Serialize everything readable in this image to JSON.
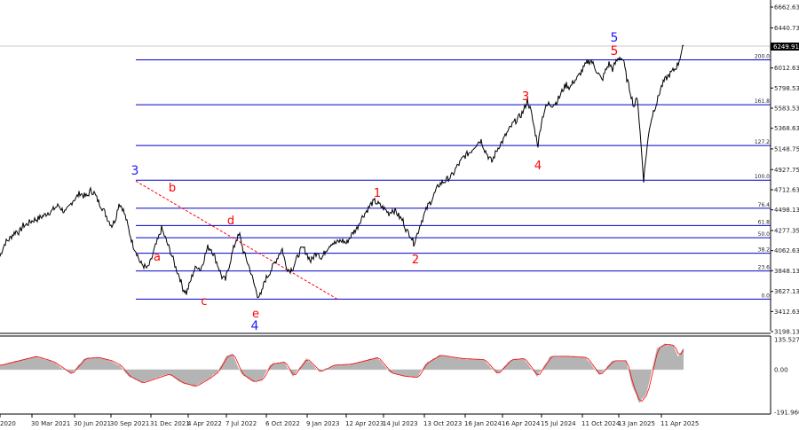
{
  "colors": {
    "price_line": "#000000",
    "fib_line": "#0000cc",
    "trend_line": "#ff0000",
    "wave_red": "#ff0000",
    "wave_blue": "#1a1aff",
    "osc_fill": "#b4b4b4",
    "osc_signal": "#ff0000",
    "price_tag_bg": "#000000"
  },
  "chart_data": [
    {
      "type": "line",
      "panel": "price",
      "y_ticks": [
        "6662.63",
        "6440.73",
        "6249.91",
        "6012.63",
        "5798.53",
        "5583.53",
        "5368.63",
        "5148.75",
        "4927.75",
        "4712.63",
        "4498.13",
        "4277.35",
        "4062.63",
        "3848.13",
        "3627.13",
        "3412.63",
        "3198.13"
      ],
      "y_tick_values": [
        6662.63,
        6440.73,
        6249.91,
        6012.63,
        5798.53,
        5583.53,
        5368.63,
        5148.75,
        4927.75,
        4712.63,
        4498.13,
        4277.35,
        4062.63,
        3848.13,
        3627.13,
        3412.63,
        3198.13
      ],
      "ylim": [
        3198.13,
        6662.63
      ],
      "current_price_label": "6249.91",
      "x_labels": [
        "2020",
        "30 Mar 2021",
        "30 Jun 2021",
        "30 Sep 2021",
        "31 Dec 2021",
        "4 Apr 2022",
        "7 Jul 2022",
        "6 Oct 2022",
        "9 Jan 2023",
        "12 Apr 2023",
        "14 Jul 2023",
        "13 Oct 2023",
        "16 Jan 2024",
        "16 Apr 2024",
        "15 Jul 2024",
        "11 Oct 2024",
        "13 Jan 2025",
        "11 Apr 2025"
      ],
      "fib_levels": [
        {
          "label": "200.0",
          "value": 6100
        },
        {
          "label": "161.8",
          "value": 5620
        },
        {
          "label": "127.2",
          "value": 5185
        },
        {
          "label": "100.0",
          "value": 4815
        },
        {
          "label": "76.4",
          "value": 4515
        },
        {
          "label": "61.8",
          "value": 4330
        },
        {
          "label": "50.0",
          "value": 4200
        },
        {
          "label": "38.2",
          "value": 4035
        },
        {
          "label": "23.6",
          "value": 3845
        },
        {
          "label": "0.0",
          "value": 3545
        }
      ],
      "wave_labels": [
        {
          "text": "3",
          "color": "blue"
        },
        {
          "text": "a",
          "color": "red"
        },
        {
          "text": "b",
          "color": "red"
        },
        {
          "text": "c",
          "color": "red"
        },
        {
          "text": "d",
          "color": "red"
        },
        {
          "text": "e",
          "color": "red"
        },
        {
          "text": "4",
          "color": "blue"
        },
        {
          "text": "1",
          "color": "red"
        },
        {
          "text": "2",
          "color": "red"
        },
        {
          "text": "3",
          "color": "red"
        },
        {
          "text": "4",
          "color": "red"
        },
        {
          "text": "5",
          "color": "red"
        },
        {
          "text": "5",
          "color": "blue"
        }
      ],
      "series_points": [
        {
          "t": 0,
          "v": 4000
        },
        {
          "t": 3,
          "v": 4085
        },
        {
          "t": 6,
          "v": 4150
        },
        {
          "t": 10,
          "v": 4180
        },
        {
          "t": 14,
          "v": 4230
        },
        {
          "t": 18,
          "v": 4270
        },
        {
          "t": 22,
          "v": 4260
        },
        {
          "t": 26,
          "v": 4330
        },
        {
          "t": 30,
          "v": 4340
        },
        {
          "t": 34,
          "v": 4370
        },
        {
          "t": 38,
          "v": 4390
        },
        {
          "t": 42,
          "v": 4400
        },
        {
          "t": 46,
          "v": 4420
        },
        {
          "t": 50,
          "v": 4440
        },
        {
          "t": 54,
          "v": 4470
        },
        {
          "t": 58,
          "v": 4480
        },
        {
          "t": 62,
          "v": 4520
        },
        {
          "t": 66,
          "v": 4545
        },
        {
          "t": 70,
          "v": 4500
        },
        {
          "t": 74,
          "v": 4470
        },
        {
          "t": 78,
          "v": 4530
        },
        {
          "t": 82,
          "v": 4600
        },
        {
          "t": 86,
          "v": 4630
        },
        {
          "t": 90,
          "v": 4680
        },
        {
          "t": 94,
          "v": 4650
        },
        {
          "t": 98,
          "v": 4640
        },
        {
          "t": 102,
          "v": 4705
        },
        {
          "t": 106,
          "v": 4680
        },
        {
          "t": 110,
          "v": 4600
        },
        {
          "t": 114,
          "v": 4540
        },
        {
          "t": 118,
          "v": 4470
        },
        {
          "t": 122,
          "v": 4390
        },
        {
          "t": 126,
          "v": 4330
        },
        {
          "t": 130,
          "v": 4400
        },
        {
          "t": 134,
          "v": 4570
        },
        {
          "t": 138,
          "v": 4520
        },
        {
          "t": 142,
          "v": 4400
        },
        {
          "t": 146,
          "v": 4250
        },
        {
          "t": 150,
          "v": 4120
        },
        {
          "t": 154,
          "v": 4040
        },
        {
          "t": 158,
          "v": 3930
        },
        {
          "t": 162,
          "v": 3900
        },
        {
          "t": 166,
          "v": 3870
        },
        {
          "t": 170,
          "v": 3950
        },
        {
          "t": 174,
          "v": 4080
        },
        {
          "t": 178,
          "v": 4180
        },
        {
          "t": 182,
          "v": 4300
        },
        {
          "t": 186,
          "v": 4200
        },
        {
          "t": 190,
          "v": 4100
        },
        {
          "t": 194,
          "v": 4000
        },
        {
          "t": 198,
          "v": 3880
        },
        {
          "t": 202,
          "v": 3790
        },
        {
          "t": 206,
          "v": 3660
        },
        {
          "t": 210,
          "v": 3610
        },
        {
          "t": 214,
          "v": 3720
        },
        {
          "t": 218,
          "v": 3840
        },
        {
          "t": 222,
          "v": 3900
        },
        {
          "t": 226,
          "v": 3860
        },
        {
          "t": 230,
          "v": 3980
        },
        {
          "t": 234,
          "v": 4100
        },
        {
          "t": 238,
          "v": 4080
        },
        {
          "t": 242,
          "v": 3990
        },
        {
          "t": 246,
          "v": 3890
        },
        {
          "t": 250,
          "v": 3780
        },
        {
          "t": 254,
          "v": 3750
        },
        {
          "t": 258,
          "v": 3900
        },
        {
          "t": 262,
          "v": 4050
        },
        {
          "t": 266,
          "v": 4180
        },
        {
          "t": 270,
          "v": 4230
        },
        {
          "t": 274,
          "v": 4060
        },
        {
          "t": 278,
          "v": 3960
        },
        {
          "t": 282,
          "v": 3850
        },
        {
          "t": 286,
          "v": 3710
        },
        {
          "t": 290,
          "v": 3590
        },
        {
          "t": 294,
          "v": 3580
        },
        {
          "t": 298,
          "v": 3740
        },
        {
          "t": 302,
          "v": 3800
        },
        {
          "t": 306,
          "v": 3870
        },
        {
          "t": 310,
          "v": 3940
        },
        {
          "t": 314,
          "v": 4020
        },
        {
          "t": 318,
          "v": 4080
        },
        {
          "t": 322,
          "v": 3900
        },
        {
          "t": 326,
          "v": 3850
        },
        {
          "t": 330,
          "v": 3880
        },
        {
          "t": 334,
          "v": 3970
        },
        {
          "t": 338,
          "v": 4060
        },
        {
          "t": 342,
          "v": 4090
        },
        {
          "t": 346,
          "v": 4020
        },
        {
          "t": 350,
          "v": 3950
        },
        {
          "t": 354,
          "v": 4010
        },
        {
          "t": 358,
          "v": 4060
        },
        {
          "t": 362,
          "v": 3970
        },
        {
          "t": 366,
          "v": 4050
        },
        {
          "t": 370,
          "v": 4110
        },
        {
          "t": 374,
          "v": 4150
        },
        {
          "t": 378,
          "v": 4140
        },
        {
          "t": 382,
          "v": 4160
        },
        {
          "t": 386,
          "v": 4170
        },
        {
          "t": 390,
          "v": 4140
        },
        {
          "t": 394,
          "v": 4200
        },
        {
          "t": 398,
          "v": 4260
        },
        {
          "t": 402,
          "v": 4300
        },
        {
          "t": 406,
          "v": 4390
        },
        {
          "t": 410,
          "v": 4450
        },
        {
          "t": 414,
          "v": 4500
        },
        {
          "t": 418,
          "v": 4560
        },
        {
          "t": 422,
          "v": 4590
        },
        {
          "t": 426,
          "v": 4560
        },
        {
          "t": 430,
          "v": 4530
        },
        {
          "t": 434,
          "v": 4500
        },
        {
          "t": 438,
          "v": 4460
        },
        {
          "t": 442,
          "v": 4500
        },
        {
          "t": 446,
          "v": 4480
        },
        {
          "t": 450,
          "v": 4420
        },
        {
          "t": 454,
          "v": 4380
        },
        {
          "t": 458,
          "v": 4270
        },
        {
          "t": 462,
          "v": 4240
        },
        {
          "t": 466,
          "v": 4140
        },
        {
          "t": 470,
          "v": 4240
        },
        {
          "t": 474,
          "v": 4360
        },
        {
          "t": 478,
          "v": 4450
        },
        {
          "t": 482,
          "v": 4540
        },
        {
          "t": 486,
          "v": 4600
        },
        {
          "t": 490,
          "v": 4680
        },
        {
          "t": 494,
          "v": 4760
        },
        {
          "t": 498,
          "v": 4790
        },
        {
          "t": 502,
          "v": 4810
        },
        {
          "t": 506,
          "v": 4840
        },
        {
          "t": 510,
          "v": 4870
        },
        {
          "t": 514,
          "v": 4950
        },
        {
          "t": 518,
          "v": 5000
        },
        {
          "t": 522,
          "v": 5060
        },
        {
          "t": 526,
          "v": 5090
        },
        {
          "t": 530,
          "v": 5120
        },
        {
          "t": 534,
          "v": 5170
        },
        {
          "t": 538,
          "v": 5220
        },
        {
          "t": 542,
          "v": 5240
        },
        {
          "t": 546,
          "v": 5140
        },
        {
          "t": 550,
          "v": 5070
        },
        {
          "t": 554,
          "v": 5010
        },
        {
          "t": 558,
          "v": 5100
        },
        {
          "t": 562,
          "v": 5180
        },
        {
          "t": 566,
          "v": 5230
        },
        {
          "t": 570,
          "v": 5300
        },
        {
          "t": 574,
          "v": 5360
        },
        {
          "t": 578,
          "v": 5420
        },
        {
          "t": 582,
          "v": 5460
        },
        {
          "t": 586,
          "v": 5500
        },
        {
          "t": 590,
          "v": 5560
        },
        {
          "t": 594,
          "v": 5670
        },
        {
          "t": 598,
          "v": 5550
        },
        {
          "t": 602,
          "v": 5360
        },
        {
          "t": 606,
          "v": 5190
        },
        {
          "t": 610,
          "v": 5450
        },
        {
          "t": 614,
          "v": 5580
        },
        {
          "t": 618,
          "v": 5630
        },
        {
          "t": 622,
          "v": 5620
        },
        {
          "t": 626,
          "v": 5640
        },
        {
          "t": 630,
          "v": 5700
        },
        {
          "t": 634,
          "v": 5780
        },
        {
          "t": 638,
          "v": 5840
        },
        {
          "t": 642,
          "v": 5800
        },
        {
          "t": 646,
          "v": 5870
        },
        {
          "t": 650,
          "v": 5900
        },
        {
          "t": 654,
          "v": 5960
        },
        {
          "t": 658,
          "v": 6020
        },
        {
          "t": 662,
          "v": 6080
        },
        {
          "t": 666,
          "v": 6090
        },
        {
          "t": 670,
          "v": 6020
        },
        {
          "t": 674,
          "v": 5950
        },
        {
          "t": 678,
          "v": 5880
        },
        {
          "t": 682,
          "v": 5980
        },
        {
          "t": 686,
          "v": 6060
        },
        {
          "t": 690,
          "v": 6000
        },
        {
          "t": 694,
          "v": 6080
        },
        {
          "t": 698,
          "v": 6130
        },
        {
          "t": 702,
          "v": 6100
        },
        {
          "t": 706,
          "v": 5900
        },
        {
          "t": 710,
          "v": 5760
        },
        {
          "t": 714,
          "v": 5600
        },
        {
          "t": 718,
          "v": 5700
        },
        {
          "t": 722,
          "v": 5200
        },
        {
          "t": 725,
          "v": 4820
        },
        {
          "t": 728,
          "v": 5100
        },
        {
          "t": 732,
          "v": 5400
        },
        {
          "t": 736,
          "v": 5550
        },
        {
          "t": 740,
          "v": 5650
        },
        {
          "t": 744,
          "v": 5790
        },
        {
          "t": 748,
          "v": 5870
        },
        {
          "t": 752,
          "v": 5920
        },
        {
          "t": 756,
          "v": 5960
        },
        {
          "t": 760,
          "v": 6000
        },
        {
          "t": 764,
          "v": 6060
        },
        {
          "t": 768,
          "v": 6200
        },
        {
          "t": 770,
          "v": 6250
        }
      ]
    },
    {
      "type": "area",
      "panel": "oscillator",
      "y_ticks": [
        "135.527",
        "0.00",
        "-191.966"
      ],
      "y_tick_values": [
        135.527,
        0,
        -191.966
      ],
      "ylim": [
        -191.966,
        135.527
      ],
      "series": [
        {
          "values": [
            {
              "t": 0,
              "v": 20
            },
            {
              "t": 20,
              "v": 40
            },
            {
              "t": 40,
              "v": 60
            },
            {
              "t": 60,
              "v": 35
            },
            {
              "t": 80,
              "v": -20
            },
            {
              "t": 95,
              "v": 50
            },
            {
              "t": 110,
              "v": 55
            },
            {
              "t": 125,
              "v": 40
            },
            {
              "t": 135,
              "v": 20
            },
            {
              "t": 145,
              "v": -30
            },
            {
              "t": 160,
              "v": -60
            },
            {
              "t": 175,
              "v": -40
            },
            {
              "t": 190,
              "v": -20
            },
            {
              "t": 205,
              "v": -60
            },
            {
              "t": 220,
              "v": -75
            },
            {
              "t": 235,
              "v": -40
            },
            {
              "t": 245,
              "v": -10
            },
            {
              "t": 255,
              "v": 60
            },
            {
              "t": 262,
              "v": 70
            },
            {
              "t": 272,
              "v": -20
            },
            {
              "t": 285,
              "v": -55
            },
            {
              "t": 295,
              "v": -45
            },
            {
              "t": 305,
              "v": 25
            },
            {
              "t": 320,
              "v": 35
            },
            {
              "t": 330,
              "v": -30
            },
            {
              "t": 345,
              "v": 50
            },
            {
              "t": 360,
              "v": -10
            },
            {
              "t": 375,
              "v": 20
            },
            {
              "t": 395,
              "v": 25
            },
            {
              "t": 410,
              "v": 40
            },
            {
              "t": 425,
              "v": 55
            },
            {
              "t": 440,
              "v": -15
            },
            {
              "t": 455,
              "v": -30
            },
            {
              "t": 470,
              "v": -35
            },
            {
              "t": 480,
              "v": 30
            },
            {
              "t": 495,
              "v": 65
            },
            {
              "t": 520,
              "v": 50
            },
            {
              "t": 545,
              "v": 45
            },
            {
              "t": 560,
              "v": -20
            },
            {
              "t": 575,
              "v": 45
            },
            {
              "t": 590,
              "v": 50
            },
            {
              "t": 605,
              "v": -30
            },
            {
              "t": 620,
              "v": 60
            },
            {
              "t": 640,
              "v": 60
            },
            {
              "t": 660,
              "v": 55
            },
            {
              "t": 675,
              "v": -25
            },
            {
              "t": 690,
              "v": 40
            },
            {
              "t": 705,
              "v": 40
            },
            {
              "t": 712,
              "v": -70
            },
            {
              "t": 720,
              "v": -150
            },
            {
              "t": 728,
              "v": -110
            },
            {
              "t": 740,
              "v": 95
            },
            {
              "t": 748,
              "v": 115
            },
            {
              "t": 758,
              "v": 110
            },
            {
              "t": 764,
              "v": 60
            },
            {
              "t": 770,
              "v": 100
            }
          ]
        }
      ]
    }
  ]
}
